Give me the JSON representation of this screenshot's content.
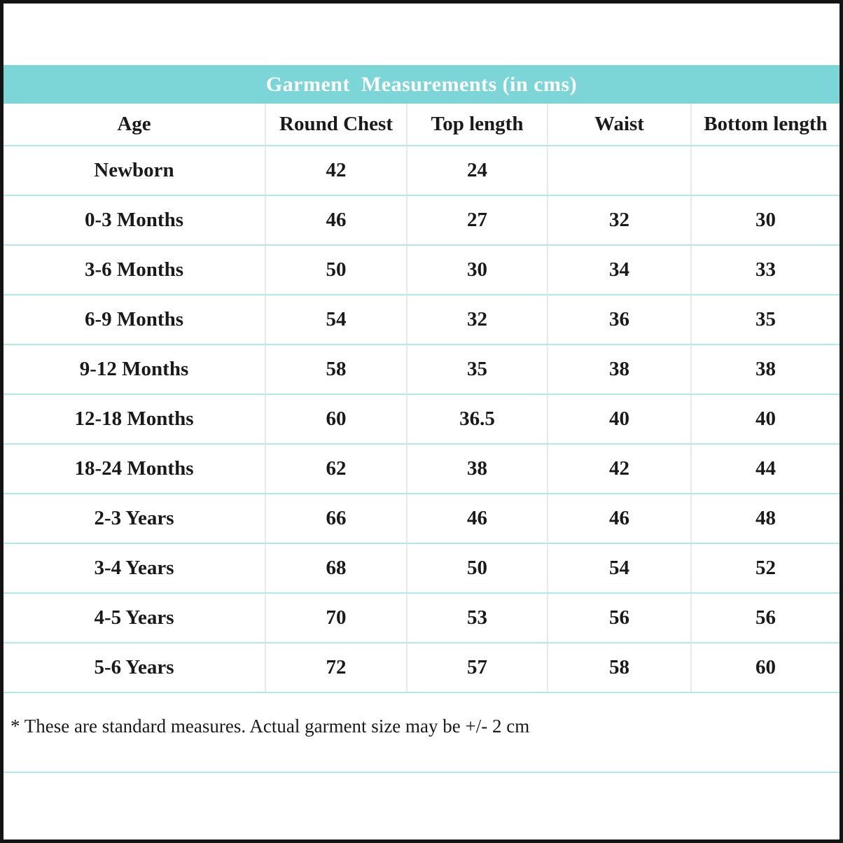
{
  "title": "Garment  Measurements (in cms)",
  "colors": {
    "header_bg": "#7cd6d8",
    "row_separator": "#aeeaec",
    "column_separator": "#e9e9e9",
    "outer_border": "#141414",
    "title_text": "#ffffff",
    "body_text": "#1a1a1a"
  },
  "table": {
    "headers": [
      "Age",
      "Round Chest",
      "Top length",
      "Waist",
      "Bottom length"
    ],
    "rows": [
      {
        "age": "Newborn",
        "round_chest": "42",
        "top_length": "24",
        "waist": "",
        "bottom_length": ""
      },
      {
        "age": "0-3 Months",
        "round_chest": "46",
        "top_length": "27",
        "waist": "32",
        "bottom_length": "30"
      },
      {
        "age": "3-6 Months",
        "round_chest": "50",
        "top_length": "30",
        "waist": "34",
        "bottom_length": "33"
      },
      {
        "age": "6-9 Months",
        "round_chest": "54",
        "top_length": "32",
        "waist": "36",
        "bottom_length": "35"
      },
      {
        "age": "9-12 Months",
        "round_chest": "58",
        "top_length": "35",
        "waist": "38",
        "bottom_length": "38"
      },
      {
        "age": "12-18 Months",
        "round_chest": "60",
        "top_length": "36.5",
        "waist": "40",
        "bottom_length": "40"
      },
      {
        "age": "18-24 Months",
        "round_chest": "62",
        "top_length": "38",
        "waist": "42",
        "bottom_length": "44"
      },
      {
        "age": "2-3 Years",
        "round_chest": "66",
        "top_length": "46",
        "waist": "46",
        "bottom_length": "48"
      },
      {
        "age": "3-4 Years",
        "round_chest": "68",
        "top_length": "50",
        "waist": "54",
        "bottom_length": "52"
      },
      {
        "age": "4-5 Years",
        "round_chest": "70",
        "top_length": "53",
        "waist": "56",
        "bottom_length": "56"
      },
      {
        "age": "5-6 Years",
        "round_chest": "72",
        "top_length": "57",
        "waist": "58",
        "bottom_length": "60"
      }
    ]
  },
  "footnote": "* These are standard measures. Actual garment size may be +/- 2 cm"
}
